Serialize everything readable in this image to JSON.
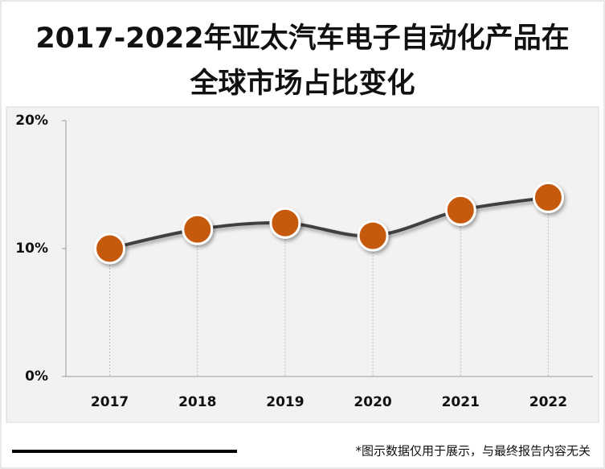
{
  "chart_data": {
    "type": "line",
    "title": "2017-2022年亚太汽车电子自动化产品在全球市场占比变化",
    "categories": [
      "2017",
      "2018",
      "2019",
      "2020",
      "2021",
      "2022"
    ],
    "values": [
      10,
      11.5,
      12,
      11,
      13,
      14
    ],
    "color": "#c55a11",
    "line_color": "#404040",
    "ylim": [
      0,
      20
    ],
    "yticks": [
      {
        "value": 0,
        "label": "0%"
      },
      {
        "value": 10,
        "label": "10%"
      },
      {
        "value": 20,
        "label": "20%"
      }
    ],
    "footnote": "*图示数据仅用于展示，与最终报告内容无关"
  }
}
